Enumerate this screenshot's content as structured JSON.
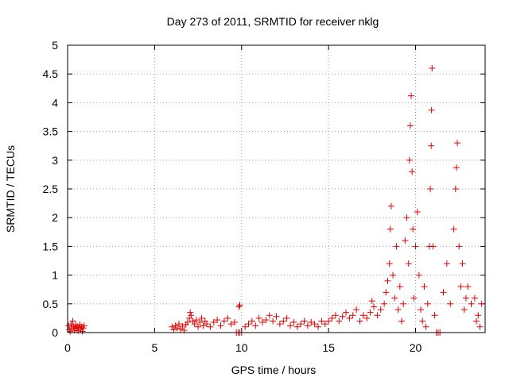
{
  "chart_data": {
    "type": "scatter",
    "title": "Day 273 of 2011, SRMTID for receiver nklg",
    "xlabel": "GPS time / hours",
    "ylabel": "SRMTID / TECUs",
    "xlim": [
      0,
      24
    ],
    "ylim": [
      0,
      5
    ],
    "xticks": [
      0,
      5,
      10,
      15,
      20
    ],
    "xtick_labels": [
      "0",
      "5",
      "10",
      "15",
      "20"
    ],
    "yticks": [
      0,
      0.5,
      1,
      1.5,
      2,
      2.5,
      3,
      3.5,
      4,
      4.5,
      5
    ],
    "ytick_labels": [
      "0",
      "0.5",
      "1",
      "1.5",
      "2",
      "2.5",
      "3",
      "3.5",
      "4",
      "4.5",
      "5"
    ],
    "grid": true,
    "marker": "+",
    "series": [
      {
        "name": "nklg",
        "color": "#e00000",
        "points": [
          [
            0.05,
            0.12
          ],
          [
            0.1,
            0.05
          ],
          [
            0.15,
            0.02
          ],
          [
            0.2,
            0.15
          ],
          [
            0.25,
            0.08
          ],
          [
            0.3,
            0.2
          ],
          [
            0.35,
            0.1
          ],
          [
            0.4,
            0.04
          ],
          [
            0.45,
            0.13
          ],
          [
            0.5,
            0.07
          ],
          [
            0.55,
            0.11
          ],
          [
            0.6,
            0.03
          ],
          [
            0.65,
            0.09
          ],
          [
            0.7,
            0.14
          ],
          [
            0.75,
            0.06
          ],
          [
            0.8,
            0.1
          ],
          [
            0.85,
            0.02
          ],
          [
            0.9,
            0.08
          ],
          [
            0.95,
            0.12
          ],
          [
            6.0,
            0.1
          ],
          [
            6.1,
            0.05
          ],
          [
            6.2,
            0.12
          ],
          [
            6.3,
            0.08
          ],
          [
            6.4,
            0.15
          ],
          [
            6.5,
            0.06
          ],
          [
            6.6,
            0.11
          ],
          [
            6.7,
            0.04
          ],
          [
            6.8,
            0.14
          ],
          [
            6.9,
            0.18
          ],
          [
            7.0,
            0.25
          ],
          [
            7.05,
            0.35
          ],
          [
            7.1,
            0.3
          ],
          [
            7.2,
            0.2
          ],
          [
            7.3,
            0.15
          ],
          [
            7.4,
            0.22
          ],
          [
            7.5,
            0.1
          ],
          [
            7.6,
            0.18
          ],
          [
            7.7,
            0.25
          ],
          [
            7.8,
            0.12
          ],
          [
            7.9,
            0.2
          ],
          [
            8.0,
            0.15
          ],
          [
            8.2,
            0.1
          ],
          [
            8.4,
            0.18
          ],
          [
            8.6,
            0.22
          ],
          [
            8.8,
            0.12
          ],
          [
            9.0,
            0.2
          ],
          [
            9.2,
            0.25
          ],
          [
            9.4,
            0.15
          ],
          [
            9.6,
            0.18
          ],
          [
            9.7,
            0.0
          ],
          [
            9.8,
            0.0
          ],
          [
            9.9,
            0.0
          ],
          [
            10.0,
            0.0
          ],
          [
            9.85,
            0.45
          ],
          [
            9.9,
            0.48
          ],
          [
            10.2,
            0.1
          ],
          [
            10.4,
            0.15
          ],
          [
            10.6,
            0.2
          ],
          [
            10.8,
            0.12
          ],
          [
            11.0,
            0.25
          ],
          [
            11.2,
            0.18
          ],
          [
            11.4,
            0.22
          ],
          [
            11.6,
            0.3
          ],
          [
            11.8,
            0.2
          ],
          [
            12.0,
            0.28
          ],
          [
            12.2,
            0.15
          ],
          [
            12.4,
            0.2
          ],
          [
            12.6,
            0.25
          ],
          [
            12.8,
            0.12
          ],
          [
            13.0,
            0.18
          ],
          [
            13.2,
            0.1
          ],
          [
            13.4,
            0.15
          ],
          [
            13.6,
            0.2
          ],
          [
            13.8,
            0.12
          ],
          [
            14.0,
            0.18
          ],
          [
            14.2,
            0.15
          ],
          [
            14.4,
            0.1
          ],
          [
            14.6,
            0.2
          ],
          [
            14.8,
            0.15
          ],
          [
            15.0,
            0.2
          ],
          [
            15.2,
            0.25
          ],
          [
            15.4,
            0.3
          ],
          [
            15.6,
            0.2
          ],
          [
            15.8,
            0.28
          ],
          [
            16.0,
            0.35
          ],
          [
            16.2,
            0.25
          ],
          [
            16.4,
            0.3
          ],
          [
            16.6,
            0.4
          ],
          [
            16.8,
            0.2
          ],
          [
            17.0,
            0.3
          ],
          [
            17.2,
            0.25
          ],
          [
            17.4,
            0.35
          ],
          [
            17.5,
            0.55
          ],
          [
            17.6,
            0.45
          ],
          [
            17.8,
            0.3
          ],
          [
            18.0,
            0.4
          ],
          [
            18.2,
            0.5
          ],
          [
            18.3,
            0.7
          ],
          [
            18.4,
            0.9
          ],
          [
            18.5,
            1.2
          ],
          [
            18.55,
            1.8
          ],
          [
            18.6,
            2.2
          ],
          [
            18.7,
            1.0
          ],
          [
            18.8,
            0.6
          ],
          [
            18.9,
            1.5
          ],
          [
            19.0,
            0.4
          ],
          [
            19.1,
            0.8
          ],
          [
            19.2,
            0.2
          ],
          [
            19.3,
            0.5
          ],
          [
            19.4,
            1.6
          ],
          [
            19.5,
            2.0
          ],
          [
            19.6,
            1.2
          ],
          [
            19.65,
            3.0
          ],
          [
            19.7,
            3.6
          ],
          [
            19.75,
            4.12
          ],
          [
            19.8,
            2.8
          ],
          [
            19.85,
            1.8
          ],
          [
            19.9,
            0.6
          ],
          [
            20.0,
            1.5
          ],
          [
            20.1,
            2.1
          ],
          [
            20.2,
            1.0
          ],
          [
            20.3,
            0.4
          ],
          [
            20.4,
            0.2
          ],
          [
            20.5,
            0.8
          ],
          [
            20.6,
            0.1
          ],
          [
            20.7,
            0.5
          ],
          [
            20.8,
            1.5
          ],
          [
            20.85,
            2.5
          ],
          [
            20.9,
            3.25
          ],
          [
            20.92,
            3.87
          ],
          [
            20.95,
            4.6
          ],
          [
            21.0,
            1.5
          ],
          [
            21.1,
            0.3
          ],
          [
            21.2,
            0.0
          ],
          [
            21.3,
            0.0
          ],
          [
            21.4,
            0.0
          ],
          [
            21.6,
            0.7
          ],
          [
            21.8,
            1.2
          ],
          [
            22.0,
            0.5
          ],
          [
            22.2,
            1.8
          ],
          [
            22.3,
            2.5
          ],
          [
            22.35,
            2.87
          ],
          [
            22.4,
            3.3
          ],
          [
            22.5,
            1.5
          ],
          [
            22.6,
            0.8
          ],
          [
            22.7,
            1.2
          ],
          [
            22.8,
            0.4
          ],
          [
            22.9,
            0.6
          ],
          [
            23.0,
            0.8
          ],
          [
            23.2,
            0.5
          ],
          [
            23.4,
            0.6
          ],
          [
            23.5,
            0.2
          ],
          [
            23.6,
            0.3
          ],
          [
            23.7,
            0.1
          ],
          [
            23.8,
            0.5
          ]
        ]
      }
    ]
  }
}
